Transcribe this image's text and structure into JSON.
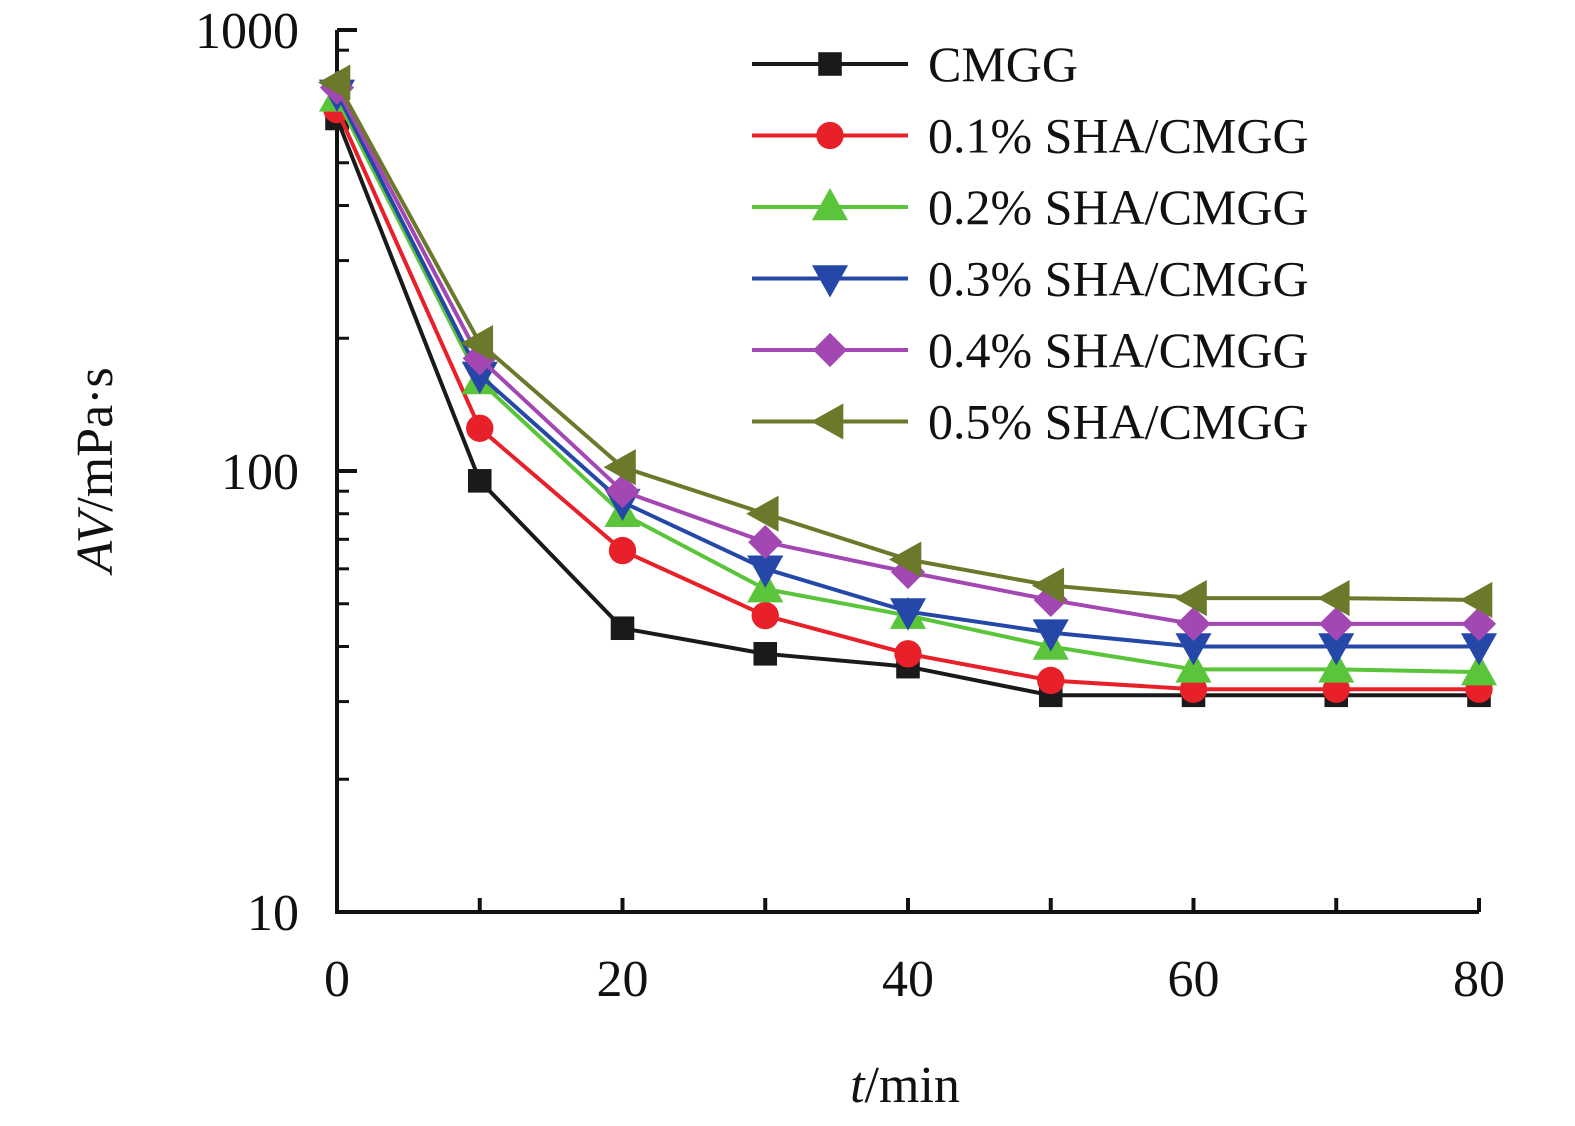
{
  "chart_data": {
    "type": "line",
    "title": "",
    "xlabel": {
      "italic": "t",
      "rest": "/min"
    },
    "ylabel": {
      "italic": "AV",
      "rest": "/mPa·s"
    },
    "xlim": [
      0,
      80
    ],
    "ylim": [
      10,
      1000
    ],
    "yscale": "log",
    "x_ticks": [
      0,
      20,
      40,
      60,
      80
    ],
    "x_tick_labels": [
      "0",
      "20",
      "40",
      "60",
      "80"
    ],
    "y_major_ticks": [
      10,
      100,
      1000
    ],
    "y_tick_labels": [
      "10",
      "100",
      "1000"
    ],
    "grid": false,
    "legend_position": "top-right",
    "x": [
      0,
      10,
      20,
      30,
      40,
      50,
      60,
      70,
      80
    ],
    "series": [
      {
        "name": "CMGG",
        "color": "#1a1a1a",
        "marker": "square",
        "values": [
          630,
          95,
          44,
          38.5,
          36,
          31,
          31,
          31,
          31
        ]
      },
      {
        "name": "0.1% SHA/CMGG",
        "color": "#e8202a",
        "marker": "circle",
        "values": [
          660,
          125,
          66,
          47,
          38.5,
          33.5,
          32,
          32,
          32
        ]
      },
      {
        "name": "0.2% SHA/CMGG",
        "color": "#5ac53a",
        "marker": "triangle-up",
        "values": [
          700,
          160,
          80,
          54,
          47,
          40,
          35.5,
          35.5,
          35
        ]
      },
      {
        "name": "0.3% SHA/CMGG",
        "color": "#2548a8",
        "marker": "triangle-down",
        "values": [
          720,
          165,
          85,
          60,
          48,
          43,
          40,
          40,
          40
        ]
      },
      {
        "name": "0.4% SHA/CMGG",
        "color": "#a347b3",
        "marker": "diamond",
        "values": [
          740,
          180,
          90,
          69,
          59,
          51,
          45,
          45,
          45
        ]
      },
      {
        "name": "0.5% SHA/CMGG",
        "color": "#6b7a2a",
        "marker": "triangle-left",
        "values": [
          760,
          195,
          102,
          80,
          63,
          55,
          51.5,
          51.5,
          51
        ]
      }
    ]
  }
}
